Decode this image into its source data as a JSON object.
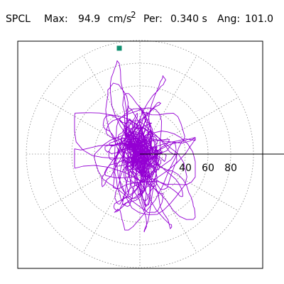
{
  "header": {
    "station": "SPCL",
    "max_label": "Max:",
    "max_value": "94.9",
    "max_unit": "cm/s",
    "max_unit_exp": "2",
    "per_label": "Per:",
    "per_value": "0.340 s",
    "ang_label": "Ang:",
    "ang_value": "101.0"
  },
  "chart_data": {
    "type": "scatter",
    "title": "",
    "xlabel": "",
    "ylabel": "",
    "rings": [
      20,
      40,
      60,
      80,
      100
    ],
    "tick_labels": [
      "40",
      "60",
      "80"
    ],
    "r_max": 100,
    "peak_marker": {
      "value": 94.9,
      "angle_deg": 101.0
    },
    "colors": {
      "trace": "#9400d3",
      "marker": "#109070",
      "grid": "#888888",
      "axis": "#000000",
      "frame": "#000000"
    },
    "grid": true,
    "seed": 20240517
  }
}
